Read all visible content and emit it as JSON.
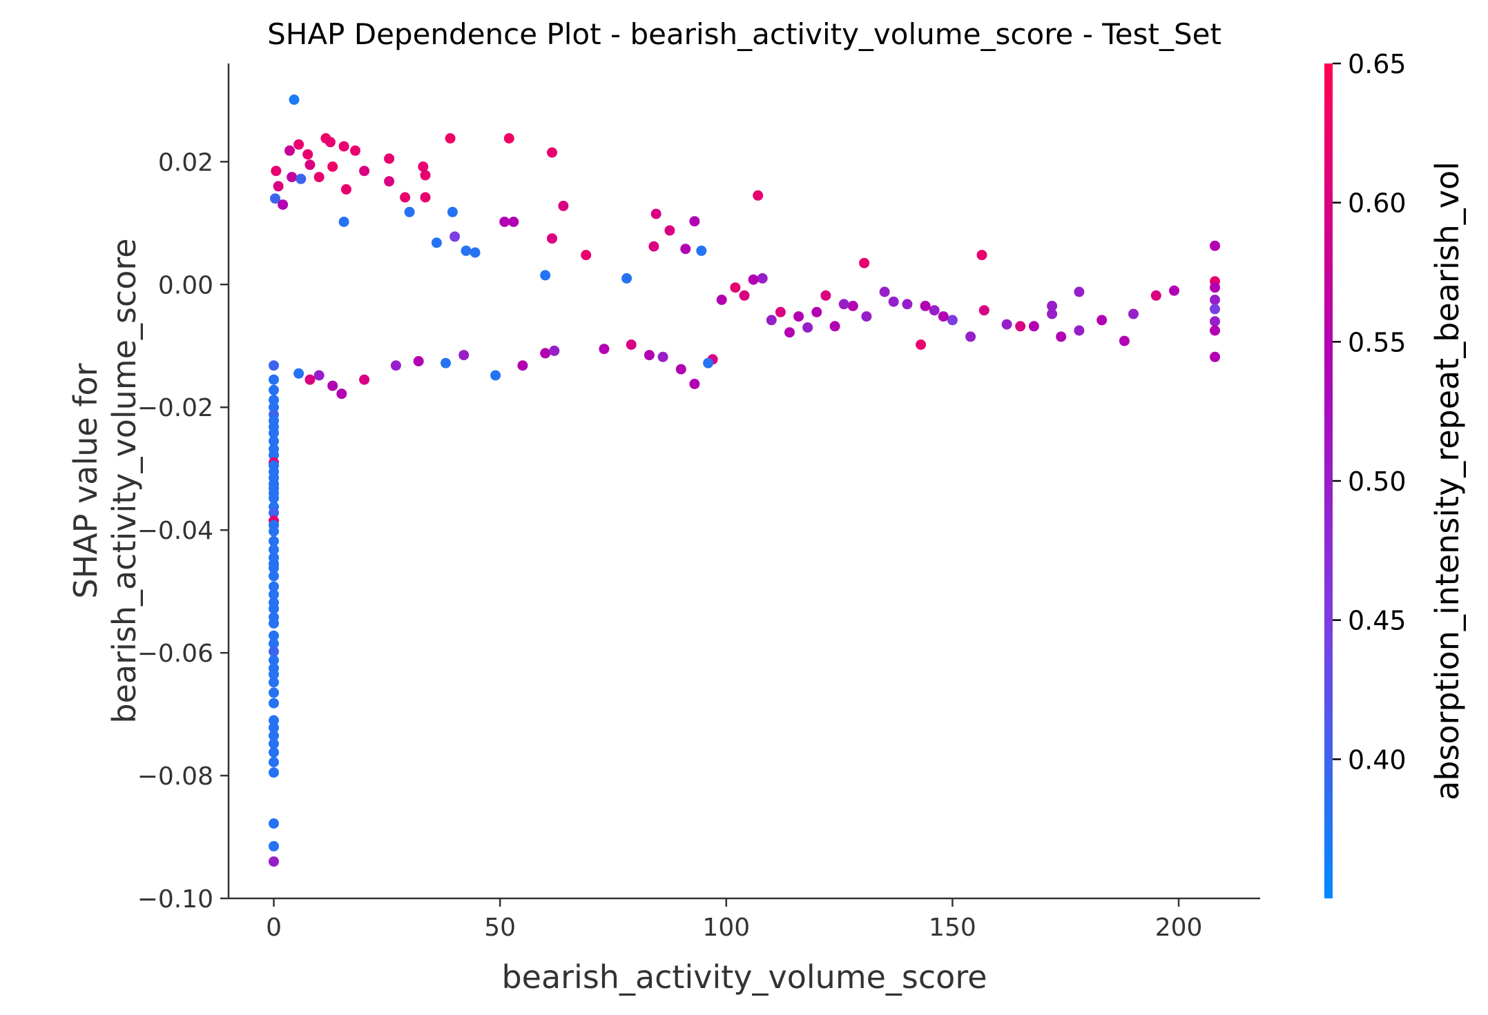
{
  "chart_data": {
    "type": "scatter",
    "title": "SHAP Dependence Plot - bearish_activity_volume_score - Test_Set",
    "xlabel": "bearish_activity_volume_score",
    "ylabel_line1": "SHAP value for",
    "ylabel_line2": "bearish_activity_volume_score",
    "xlim": [
      -10,
      218
    ],
    "ylim": [
      -0.1,
      0.036
    ],
    "xticks": [
      0,
      50,
      100,
      150,
      200
    ],
    "xtick_labels": [
      "0",
      "50",
      "100",
      "150",
      "200"
    ],
    "yticks": [
      0.02,
      0.0,
      -0.02,
      -0.04,
      -0.06,
      -0.08,
      -0.1
    ],
    "ytick_labels": [
      "0.02",
      "0.00",
      "−0.02",
      "−0.04",
      "−0.06",
      "−0.08",
      "−0.10"
    ],
    "grid": false,
    "colorbar": {
      "label": "absorption_intensity_repeat_bearish_vol",
      "range": [
        0.35,
        0.65
      ],
      "ticks": [
        0.65,
        0.6,
        0.55,
        0.5,
        0.45,
        0.4
      ],
      "tick_labels": [
        "0.65",
        "0.60",
        "0.55",
        "0.50",
        "0.45",
        "0.40"
      ],
      "colors": [
        "#008afb",
        "#7c3ee0",
        "#b200b2",
        "#ff0051"
      ]
    },
    "series": [
      {
        "points": [
          [
            4.5,
            0.0301,
            0.37
          ],
          [
            0.5,
            0.0185,
            0.62
          ],
          [
            1,
            0.016,
            0.6
          ],
          [
            0.3,
            0.014,
            0.4
          ],
          [
            2,
            0.013,
            0.55
          ],
          [
            3.5,
            0.0218,
            0.58
          ],
          [
            5.5,
            0.0228,
            0.62
          ],
          [
            7.5,
            0.0212,
            0.62
          ],
          [
            11.5,
            0.0238,
            0.63
          ],
          [
            12.5,
            0.0232,
            0.62
          ],
          [
            15.5,
            0.0225,
            0.62
          ],
          [
            13,
            0.0192,
            0.63
          ],
          [
            8,
            0.0195,
            0.6
          ],
          [
            4,
            0.0175,
            0.57
          ],
          [
            6,
            0.0172,
            0.4
          ],
          [
            10,
            0.0175,
            0.62
          ],
          [
            16,
            0.0155,
            0.62
          ],
          [
            18,
            0.0218,
            0.62
          ],
          [
            20,
            0.0185,
            0.6
          ],
          [
            25.5,
            0.0205,
            0.62
          ],
          [
            33,
            0.0192,
            0.62
          ],
          [
            33.5,
            0.0178,
            0.62
          ],
          [
            25.5,
            0.0168,
            0.6
          ],
          [
            29,
            0.0142,
            0.62
          ],
          [
            33.5,
            0.0142,
            0.62
          ],
          [
            39,
            0.0238,
            0.63
          ],
          [
            52,
            0.0238,
            0.63
          ],
          [
            61.5,
            0.0215,
            0.62
          ],
          [
            64,
            0.0128,
            0.6
          ],
          [
            53,
            0.0102,
            0.55
          ],
          [
            51,
            0.0102,
            0.55
          ],
          [
            61.5,
            0.0075,
            0.6
          ],
          [
            69,
            0.0048,
            0.62
          ],
          [
            84.5,
            0.0115,
            0.6
          ],
          [
            87.5,
            0.0088,
            0.6
          ],
          [
            93,
            0.0103,
            0.55
          ],
          [
            107,
            0.0145,
            0.62
          ],
          [
            94.5,
            0.0055,
            0.38
          ],
          [
            91,
            0.0058,
            0.55
          ],
          [
            84,
            0.0062,
            0.6
          ],
          [
            30,
            0.0118,
            0.38
          ],
          [
            39.5,
            0.0118,
            0.38
          ],
          [
            15.5,
            0.0102,
            0.38
          ],
          [
            40,
            0.0078,
            0.45
          ],
          [
            36,
            0.0068,
            0.38
          ],
          [
            42.5,
            0.0055,
            0.38
          ],
          [
            44.5,
            0.0052,
            0.38
          ],
          [
            60,
            0.0015,
            0.38
          ],
          [
            78,
            0.001,
            0.38
          ],
          [
            156.5,
            0.0048,
            0.62
          ],
          [
            130.5,
            0.0035,
            0.62
          ],
          [
            208,
            0.0063,
            0.55
          ],
          [
            208,
            0.0005,
            0.62
          ],
          [
            208,
            -0.0005,
            0.55
          ],
          [
            208,
            -0.0025,
            0.5
          ],
          [
            208,
            -0.004,
            0.45
          ],
          [
            208,
            -0.006,
            0.5
          ],
          [
            208,
            -0.0075,
            0.55
          ],
          [
            208,
            -0.0118,
            0.55
          ],
          [
            199,
            -0.001,
            0.55
          ],
          [
            195,
            -0.0018,
            0.6
          ],
          [
            190,
            -0.0048,
            0.5
          ],
          [
            188,
            -0.0092,
            0.55
          ],
          [
            183,
            -0.0058,
            0.55
          ],
          [
            178,
            -0.0012,
            0.5
          ],
          [
            178,
            -0.0075,
            0.5
          ],
          [
            174,
            -0.0085,
            0.55
          ],
          [
            172,
            -0.0035,
            0.5
          ],
          [
            172,
            -0.0048,
            0.5
          ],
          [
            168,
            -0.0068,
            0.55
          ],
          [
            165,
            -0.0068,
            0.6
          ],
          [
            162,
            -0.0065,
            0.5
          ],
          [
            157,
            -0.0042,
            0.6
          ],
          [
            154,
            -0.0085,
            0.5
          ],
          [
            150,
            -0.0058,
            0.45
          ],
          [
            148,
            -0.0052,
            0.55
          ],
          [
            146,
            -0.0042,
            0.5
          ],
          [
            144,
            -0.0035,
            0.55
          ],
          [
            143,
            -0.0098,
            0.62
          ],
          [
            140,
            -0.0032,
            0.5
          ],
          [
            137,
            -0.0028,
            0.5
          ],
          [
            135,
            -0.0012,
            0.5
          ],
          [
            131,
            -0.0052,
            0.5
          ],
          [
            128,
            -0.0035,
            0.55
          ],
          [
            126,
            -0.0032,
            0.5
          ],
          [
            124,
            -0.0068,
            0.55
          ],
          [
            122,
            -0.0018,
            0.6
          ],
          [
            120,
            -0.0045,
            0.55
          ],
          [
            118,
            -0.007,
            0.5
          ],
          [
            116,
            -0.0052,
            0.55
          ],
          [
            114,
            -0.0078,
            0.55
          ],
          [
            112,
            -0.0045,
            0.6
          ],
          [
            110,
            -0.0058,
            0.5
          ],
          [
            108,
            0.001,
            0.5
          ],
          [
            106,
            0.0008,
            0.55
          ],
          [
            104,
            -0.0018,
            0.6
          ],
          [
            102,
            -0.0005,
            0.62
          ],
          [
            99,
            -0.0025,
            0.55
          ],
          [
            97,
            -0.0122,
            0.6
          ],
          [
            96,
            -0.0128,
            0.38
          ],
          [
            93,
            -0.0162,
            0.55
          ],
          [
            90,
            -0.0138,
            0.55
          ],
          [
            86,
            -0.0118,
            0.5
          ],
          [
            83,
            -0.0115,
            0.55
          ],
          [
            79,
            -0.0098,
            0.6
          ],
          [
            73,
            -0.0105,
            0.55
          ],
          [
            60,
            -0.0112,
            0.55
          ],
          [
            62,
            -0.0108,
            0.5
          ],
          [
            55,
            -0.0132,
            0.55
          ],
          [
            49,
            -0.0148,
            0.38
          ],
          [
            42,
            -0.0115,
            0.5
          ],
          [
            38,
            -0.0128,
            0.38
          ],
          [
            32,
            -0.0125,
            0.55
          ],
          [
            27,
            -0.0132,
            0.5
          ],
          [
            20,
            -0.0155,
            0.6
          ],
          [
            15,
            -0.0178,
            0.55
          ],
          [
            13,
            -0.0165,
            0.55
          ],
          [
            10,
            -0.0148,
            0.5
          ],
          [
            5.5,
            -0.0145,
            0.38
          ],
          [
            8,
            -0.0155,
            0.6
          ],
          [
            0,
            -0.0132,
            0.4
          ],
          [
            0,
            -0.0155,
            0.38
          ],
          [
            0,
            -0.0172,
            0.38
          ],
          [
            0,
            -0.0188,
            0.38
          ],
          [
            0,
            -0.02,
            0.38
          ],
          [
            0,
            -0.0212,
            0.4
          ],
          [
            0,
            -0.0222,
            0.38
          ],
          [
            0,
            -0.0232,
            0.38
          ],
          [
            0,
            -0.0242,
            0.38
          ],
          [
            0,
            -0.0255,
            0.38
          ],
          [
            0,
            -0.0268,
            0.38
          ],
          [
            0,
            -0.0278,
            0.38
          ],
          [
            0,
            -0.029,
            0.62
          ],
          [
            0,
            -0.0295,
            0.38
          ],
          [
            0,
            -0.0305,
            0.38
          ],
          [
            0,
            -0.0315,
            0.38
          ],
          [
            0,
            -0.0325,
            0.38
          ],
          [
            0,
            -0.0332,
            0.38
          ],
          [
            0,
            -0.034,
            0.38
          ],
          [
            0,
            -0.0348,
            0.38
          ],
          [
            0,
            -0.0362,
            0.38
          ],
          [
            0,
            -0.0372,
            0.4
          ],
          [
            0,
            -0.0385,
            0.62
          ],
          [
            0,
            -0.0392,
            0.38
          ],
          [
            0,
            -0.0402,
            0.38
          ],
          [
            0,
            -0.0418,
            0.38
          ],
          [
            0,
            -0.0432,
            0.38
          ],
          [
            0,
            -0.0445,
            0.38
          ],
          [
            0,
            -0.0455,
            0.38
          ],
          [
            0,
            -0.0462,
            0.38
          ],
          [
            0,
            -0.0475,
            0.38
          ],
          [
            0,
            -0.0492,
            0.38
          ],
          [
            0,
            -0.0505,
            0.38
          ],
          [
            0,
            -0.0518,
            0.38
          ],
          [
            0,
            -0.0528,
            0.38
          ],
          [
            0,
            -0.0542,
            0.38
          ],
          [
            0,
            -0.0552,
            0.38
          ],
          [
            0,
            -0.0572,
            0.38
          ],
          [
            0,
            -0.0585,
            0.38
          ],
          [
            0,
            -0.0598,
            0.4
          ],
          [
            0,
            -0.0612,
            0.38
          ],
          [
            0,
            -0.0625,
            0.38
          ],
          [
            0,
            -0.0635,
            0.38
          ],
          [
            0,
            -0.0648,
            0.38
          ],
          [
            0,
            -0.0665,
            0.38
          ],
          [
            0,
            -0.0682,
            0.38
          ],
          [
            0,
            -0.071,
            0.38
          ],
          [
            0,
            -0.0722,
            0.38
          ],
          [
            0,
            -0.0735,
            0.38
          ],
          [
            0,
            -0.0748,
            0.38
          ],
          [
            0,
            -0.0762,
            0.38
          ],
          [
            0,
            -0.0778,
            0.38
          ],
          [
            0,
            -0.0795,
            0.38
          ],
          [
            0,
            -0.0878,
            0.38
          ],
          [
            0,
            -0.0915,
            0.38
          ],
          [
            0,
            -0.094,
            0.5
          ]
        ]
      }
    ]
  }
}
